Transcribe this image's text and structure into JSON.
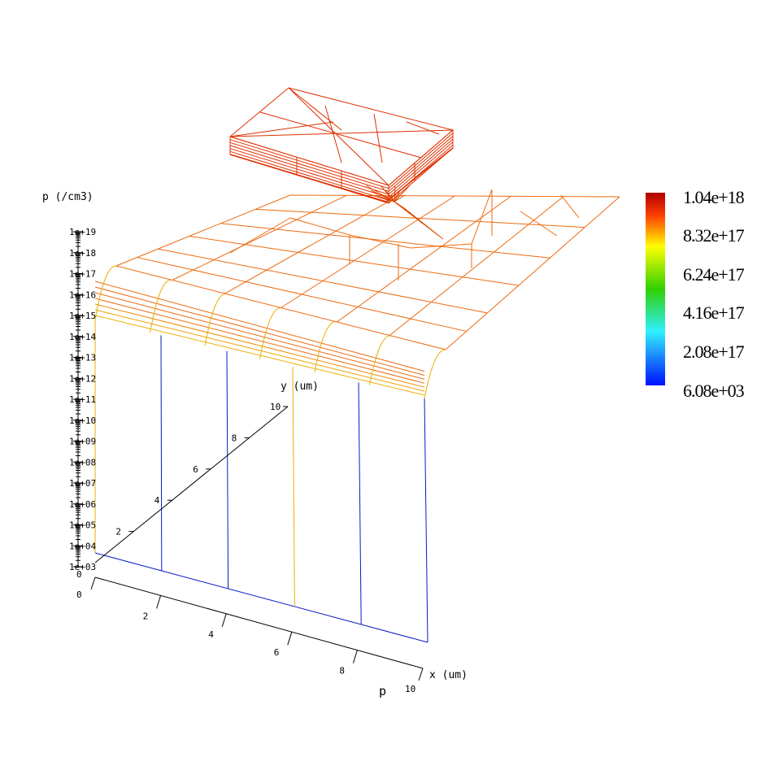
{
  "chart_data": {
    "type": "surface",
    "title": "",
    "quantity_label": "p",
    "z_axis": {
      "label": "p  (/cm3)",
      "scale": "log",
      "ticks": [
        "1e+03",
        "1e+04",
        "1e+05",
        "1e+06",
        "1e+07",
        "1e+08",
        "1e+09",
        "1e+10",
        "1e+11",
        "1e+12",
        "1e+13",
        "1e+14",
        "1e+15",
        "1e+16",
        "1e+17",
        "1e+18",
        "1e+19"
      ]
    },
    "x_axis": {
      "label": "x  (um)",
      "range": [
        0,
        10
      ],
      "ticks": [
        "0",
        "2",
        "4",
        "6",
        "8",
        "10"
      ]
    },
    "y_axis": {
      "label": "y  (um)",
      "range": [
        0,
        10
      ],
      "ticks": [
        "0",
        "2",
        "4",
        "6",
        "8",
        "10"
      ]
    },
    "colorbar": {
      "labels": [
        "1.04e+18",
        "8.32e+17",
        "6.24e+17",
        "4.16e+17",
        "2.08e+17",
        "6.08e+03"
      ],
      "colors": [
        "#c00000",
        "#ff4000",
        "#ffff00",
        "#30d000",
        "#30f0ff",
        "#0010ff"
      ]
    },
    "colors": {
      "surface_high": "#e03000",
      "surface_mid": "#ee6a10",
      "surface_transition": "#e8b000",
      "surface_low": "#0a18c8"
    }
  }
}
